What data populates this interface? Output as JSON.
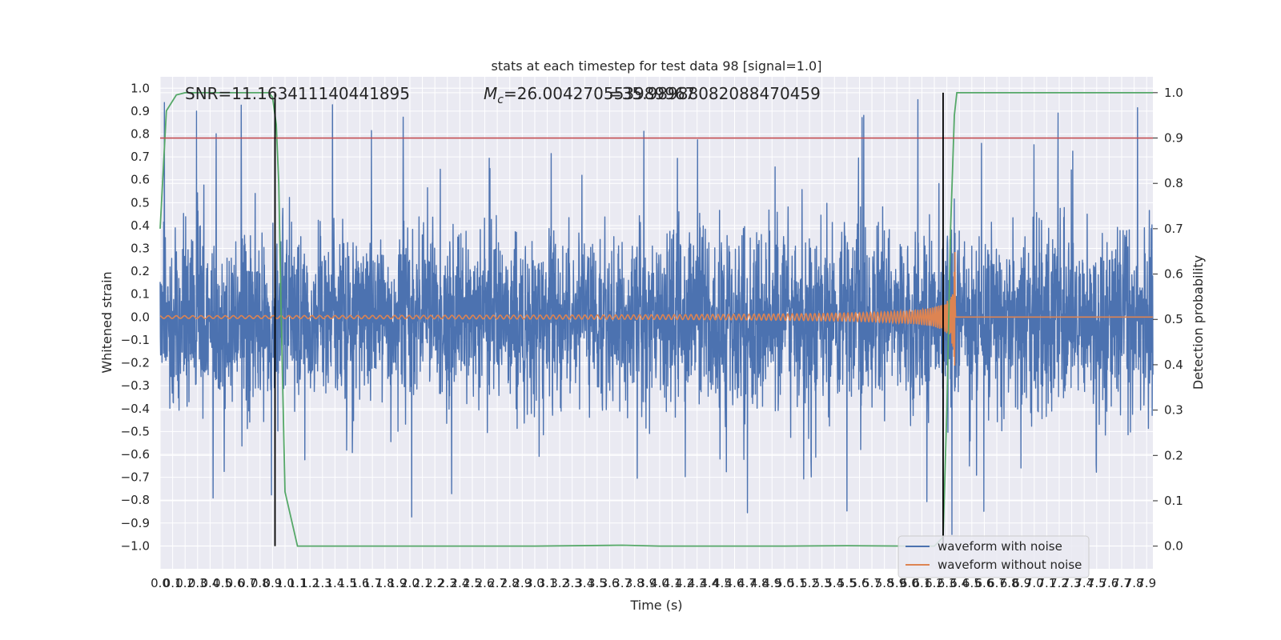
{
  "chart_data": {
    "type": "line",
    "title": "stats at each timestep for test data 98 [signal=1.0]",
    "xlabel": "Time (s)",
    "ylabel": "Whitened strain",
    "y2label": "Detection probability",
    "annotations": {
      "snr": "SNR=11.163411140441895",
      "mc_symbol": "M",
      "mc_subscript": "c",
      "mc_value": "=26.004270553989967",
      "mc_overlap": "=35.98988082088470459"
    },
    "xlim": [
      0.0,
      7.95
    ],
    "ylim": [
      -1.1,
      1.05
    ],
    "y2lim": [
      -0.05,
      1.035
    ],
    "x_ticks": [
      "0.0",
      "0.1",
      "0.2",
      "0.3",
      "0.4",
      "0.5",
      "0.6",
      "0.7",
      "0.8",
      "0.9",
      "1.0",
      "1.1",
      "1.2",
      "1.3",
      "1.4",
      "1.5",
      "1.6",
      "1.7",
      "1.8",
      "1.9",
      "2.0",
      "2.1",
      "2.2",
      "2.3",
      "2.4",
      "2.5",
      "2.6",
      "2.7",
      "2.8",
      "2.9",
      "3.0",
      "3.1",
      "3.2",
      "3.3",
      "3.4",
      "3.5",
      "3.6",
      "3.7",
      "3.8",
      "3.9",
      "4.0",
      "4.1",
      "4.2",
      "4.3",
      "4.4",
      "4.5",
      "4.6",
      "4.7",
      "4.8",
      "4.9",
      "5.0",
      "5.1",
      "5.2",
      "5.3",
      "5.4",
      "5.5",
      "5.6",
      "5.7",
      "5.8",
      "5.9",
      "6.0",
      "6.1",
      "6.2",
      "6.3",
      "6.4",
      "6.5",
      "6.6",
      "6.7",
      "6.8",
      "6.9",
      "7.0",
      "7.1",
      "7.2",
      "7.3",
      "7.4",
      "7.5",
      "7.6",
      "7.7",
      "7.8",
      "7.9"
    ],
    "y_ticks": [
      "1.0",
      "0.9",
      "0.8",
      "0.7",
      "0.6",
      "0.5",
      "0.4",
      "0.3",
      "0.2",
      "0.1",
      "0.0",
      "−0.1",
      "−0.2",
      "−0.3",
      "−0.4",
      "−0.5",
      "−0.6",
      "−0.7",
      "−0.8",
      "−0.9",
      "−1.0"
    ],
    "y2_ticks": [
      "1.0",
      "0.9",
      "0.8",
      "0.7",
      "0.6",
      "0.5",
      "0.4",
      "0.3",
      "0.2",
      "0.1",
      "0.0"
    ],
    "series": [
      {
        "name": "waveform with noise",
        "color": "#4c72b0",
        "description": "dense noisy whitened strain, core band about ±0.3, spikes up to about ±0.95",
        "envelope_core": 0.3,
        "envelope_peak": 0.95
      },
      {
        "name": "waveform without noise",
        "color": "#dd8452",
        "description": "chirp signal; amplitude grows from ~0.005 to ~0.55 at merger near t=6.37 s, then flat 0",
        "merger_time": 6.37,
        "peak_amplitude": 0.55
      },
      {
        "color": "#55a868",
        "axis": "right",
        "x": [
          0.0,
          0.05,
          0.13,
          0.2,
          0.4,
          0.6,
          0.8,
          0.87,
          0.9,
          0.93,
          0.95,
          0.97,
          1.0,
          1.1,
          2.0,
          3.0,
          3.7,
          4.0,
          5.0,
          5.5,
          6.0,
          6.2,
          6.27,
          6.3,
          6.33,
          6.36,
          6.38,
          6.4,
          6.5,
          7.0,
          7.95
        ],
        "y": [
          0.7,
          0.96,
          0.995,
          1.0,
          1.0,
          1.0,
          1.0,
          1.0,
          0.99,
          0.93,
          0.8,
          0.5,
          0.12,
          0.0,
          0.0,
          0.0,
          0.002,
          0.0,
          0.0,
          0.001,
          0.0,
          0.0,
          0.02,
          0.3,
          0.7,
          0.95,
          1.0,
          1.0,
          1.0,
          1.0,
          1.0
        ]
      }
    ],
    "threshold": {
      "axis": "right",
      "value": 0.9,
      "color": "#c44e52"
    },
    "vlines": [
      {
        "x": 0.92,
        "color": "#000000"
      },
      {
        "x": 6.27,
        "color": "#000000"
      }
    ],
    "grid": true,
    "legend": {
      "position": "lower-right",
      "entries": [
        "waveform with noise",
        "waveform without noise"
      ]
    }
  }
}
